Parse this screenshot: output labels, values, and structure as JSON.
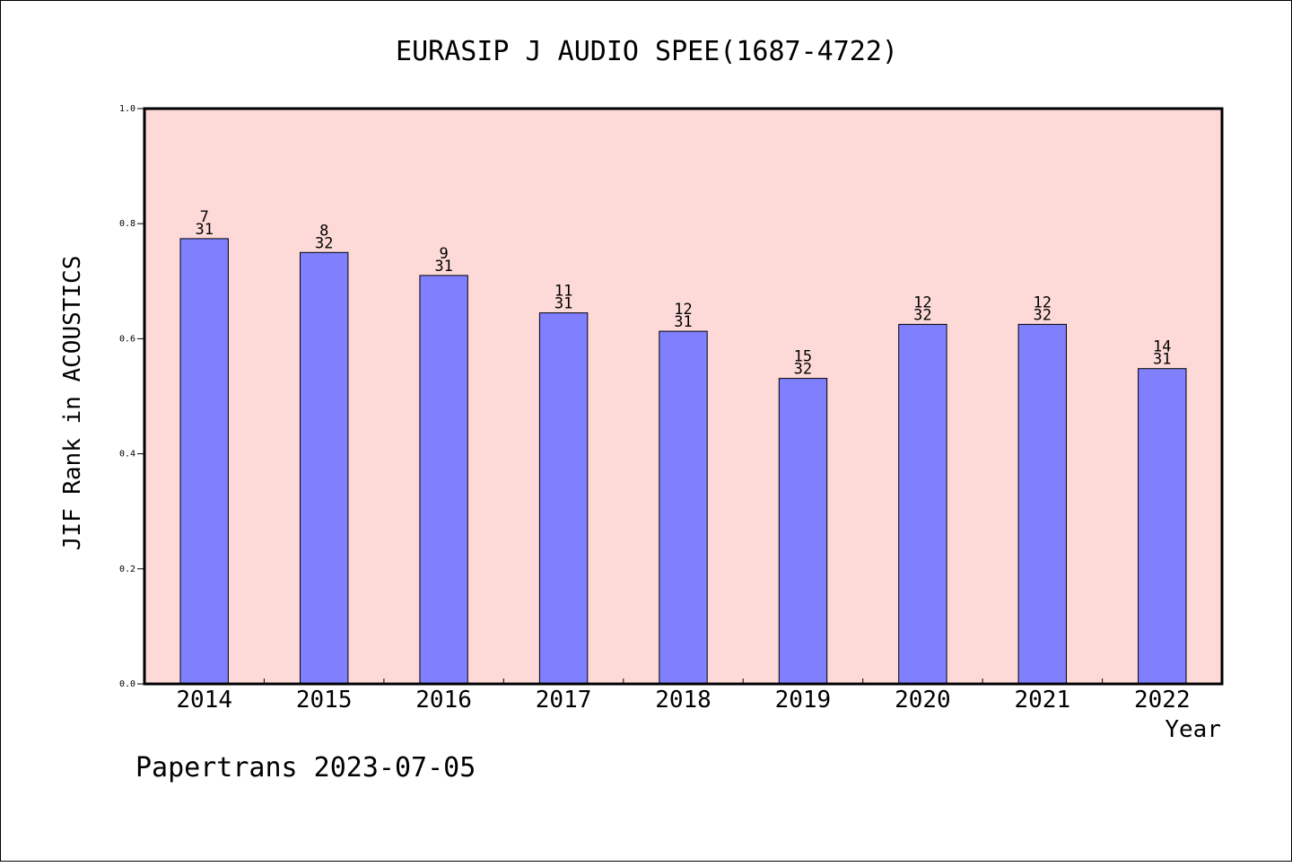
{
  "chart_data": {
    "type": "bar",
    "title": "EURASIP J AUDIO SPEE(1687-4722)",
    "xlabel": "Year",
    "ylabel": "JIF Rank in ACOUSTICS",
    "ylim": [
      0,
      1.0
    ],
    "yticks": [
      "0.0",
      "0.2",
      "0.4",
      "0.6",
      "0.8",
      "1.0"
    ],
    "grid": false,
    "plot_background": "#fddad8",
    "bar_color": "#8080ff",
    "categories": [
      "2014",
      "2015",
      "2016",
      "2017",
      "2018",
      "2019",
      "2020",
      "2021",
      "2022"
    ],
    "values": [
      0.774,
      0.75,
      0.71,
      0.645,
      0.613,
      0.531,
      0.625,
      0.625,
      0.548
    ],
    "rank": [
      "7",
      "8",
      "9",
      "11",
      "12",
      "15",
      "12",
      "12",
      "14"
    ],
    "total": [
      "31",
      "32",
      "31",
      "31",
      "31",
      "32",
      "32",
      "32",
      "31"
    ]
  },
  "footer": "Papertrans 2023-07-05"
}
